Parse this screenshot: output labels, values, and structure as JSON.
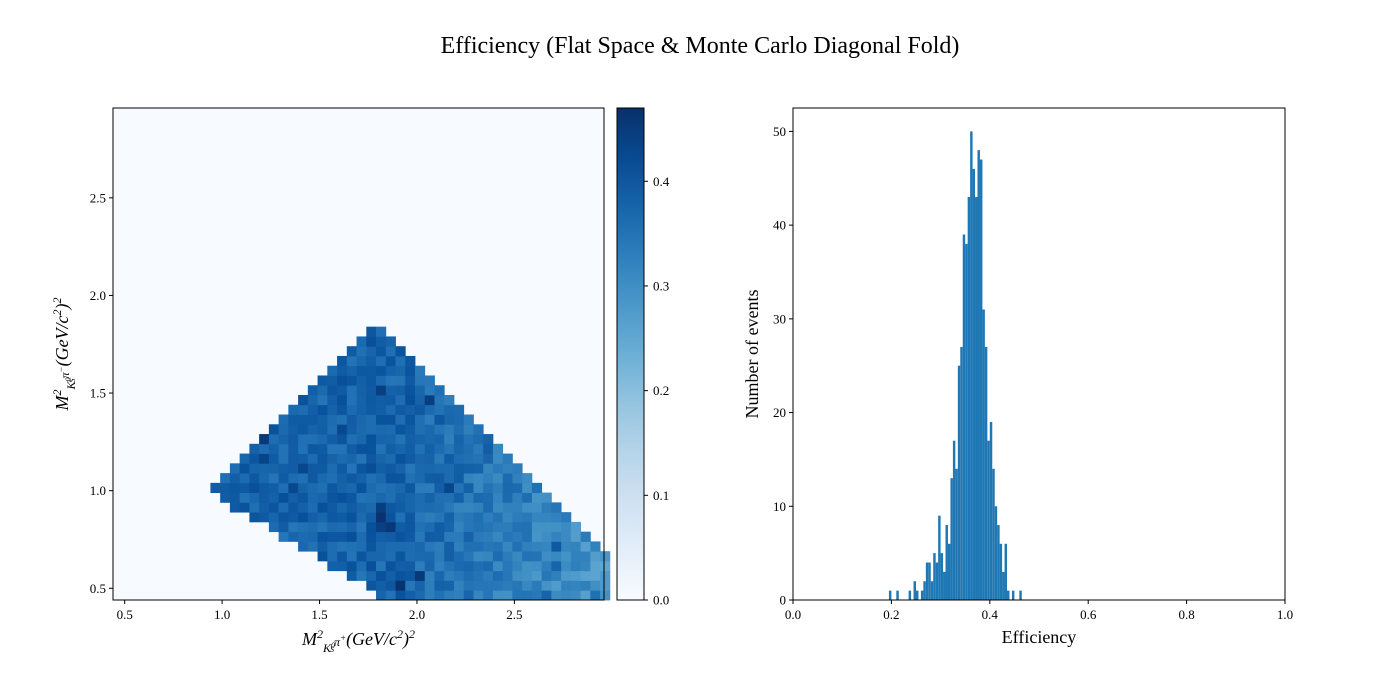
{
  "figure": {
    "title": "Efficiency (Flat Space & Monte Carlo Diagonal Fold)"
  },
  "chart_data": [
    {
      "type": "heatmap",
      "title": "",
      "xlabel": {
        "base": "M",
        "sup": "2",
        "sub": "K",
        "sub_sup": "0",
        "sub_sub": "S",
        "sub_rest": "π",
        "sub_rest_sup": "+",
        "rest": "(GeV/c",
        "rest_sup": "2",
        "rest_end": ")",
        "rest_end_sup": "2"
      },
      "ylabel": {
        "base": "M",
        "sup": "2",
        "sub": "K",
        "sub_sup": "0",
        "sub_sub": "S",
        "sub_rest": "π",
        "sub_rest_sup": "−",
        "rest": "(GeV/c",
        "rest_sup": "2",
        "rest_end": ")",
        "rest_end_sup": "2"
      },
      "xlim": [
        0.44,
        2.96
      ],
      "ylim": [
        0.44,
        2.96
      ],
      "xticks": [
        "0.5",
        "1.0",
        "1.5",
        "2.0",
        "2.5"
      ],
      "yticks": [
        "0.5",
        "1.0",
        "1.5",
        "2.0",
        "2.5"
      ],
      "bin_width": 0.05,
      "colormap": "Blues",
      "colorbar": {
        "range": [
          0.0,
          0.47
        ],
        "ticks": [
          "0.0",
          "0.1",
          "0.2",
          "0.3",
          "0.4"
        ]
      },
      "region": {
        "description_points": [
          [
            0.95,
            0.98
          ],
          [
            1.8,
            1.84
          ],
          [
            2.96,
            0.68
          ],
          [
            2.96,
            0.44
          ],
          [
            2.05,
            0.44
          ]
        ],
        "typical_value_left": 0.38,
        "typical_value_right": 0.28
      }
    },
    {
      "type": "bar",
      "title": "",
      "xlabel": "Efficiency",
      "ylabel": "Number of events",
      "xlim": [
        0.0,
        1.0
      ],
      "ylim": [
        0,
        52.5
      ],
      "xticks": [
        "0.0",
        "0.2",
        "0.4",
        "0.6",
        "0.8",
        "1.0"
      ],
      "yticks": [
        "0",
        "10",
        "20",
        "30",
        "40",
        "50"
      ],
      "bar_color": "#1f77b4",
      "bin_width": 0.005,
      "bins": [
        {
          "x": 0.195,
          "y": 1
        },
        {
          "x": 0.21,
          "y": 1
        },
        {
          "x": 0.235,
          "y": 1
        },
        {
          "x": 0.245,
          "y": 2
        },
        {
          "x": 0.25,
          "y": 1
        },
        {
          "x": 0.26,
          "y": 1
        },
        {
          "x": 0.265,
          "y": 2
        },
        {
          "x": 0.27,
          "y": 4
        },
        {
          "x": 0.275,
          "y": 4
        },
        {
          "x": 0.28,
          "y": 2
        },
        {
          "x": 0.285,
          "y": 5
        },
        {
          "x": 0.29,
          "y": 4
        },
        {
          "x": 0.295,
          "y": 9
        },
        {
          "x": 0.3,
          "y": 5
        },
        {
          "x": 0.305,
          "y": 3
        },
        {
          "x": 0.31,
          "y": 8
        },
        {
          "x": 0.315,
          "y": 6
        },
        {
          "x": 0.32,
          "y": 13
        },
        {
          "x": 0.325,
          "y": 17
        },
        {
          "x": 0.33,
          "y": 14
        },
        {
          "x": 0.335,
          "y": 25
        },
        {
          "x": 0.34,
          "y": 27
        },
        {
          "x": 0.345,
          "y": 39
        },
        {
          "x": 0.35,
          "y": 38
        },
        {
          "x": 0.355,
          "y": 43
        },
        {
          "x": 0.36,
          "y": 50
        },
        {
          "x": 0.365,
          "y": 46
        },
        {
          "x": 0.37,
          "y": 43
        },
        {
          "x": 0.375,
          "y": 48
        },
        {
          "x": 0.38,
          "y": 47
        },
        {
          "x": 0.385,
          "y": 31
        },
        {
          "x": 0.39,
          "y": 27
        },
        {
          "x": 0.395,
          "y": 17
        },
        {
          "x": 0.4,
          "y": 19
        },
        {
          "x": 0.405,
          "y": 14
        },
        {
          "x": 0.41,
          "y": 10
        },
        {
          "x": 0.415,
          "y": 8
        },
        {
          "x": 0.42,
          "y": 6
        },
        {
          "x": 0.425,
          "y": 3
        },
        {
          "x": 0.43,
          "y": 6
        },
        {
          "x": 0.435,
          "y": 1
        },
        {
          "x": 0.445,
          "y": 1
        },
        {
          "x": 0.46,
          "y": 1
        }
      ]
    }
  ]
}
